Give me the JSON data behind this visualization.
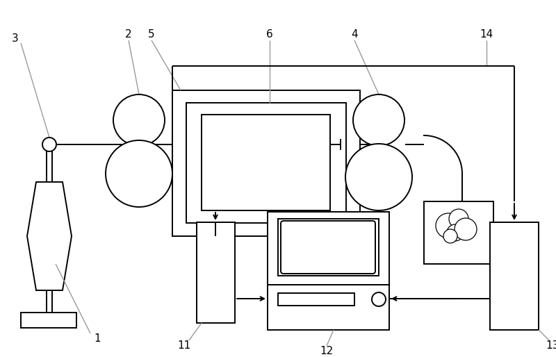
{
  "bg_color": "#ffffff",
  "line_color": "#000000",
  "gray_color": "#999999",
  "figsize": [
    8.0,
    5.14
  ],
  "dpi": 100,
  "lw": 1.4
}
